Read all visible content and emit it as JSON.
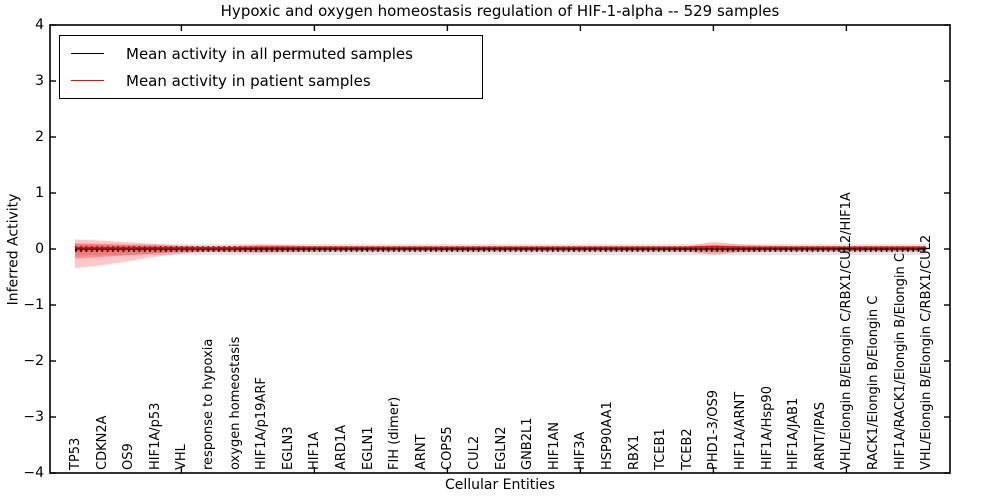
{
  "figure": {
    "background": "#ffffff",
    "axis_color": "#000000"
  },
  "chart_data": {
    "type": "line",
    "title": "Hypoxic and oxygen homeostasis regulation of HIF-1-alpha -- 529 samples",
    "xlabel": "Cellular Entities",
    "ylabel": "Inferred Activity",
    "ylim": [
      -4,
      4
    ],
    "yticks": [
      4,
      3,
      2,
      1,
      0,
      -1,
      -2,
      -3,
      -4
    ],
    "xticks": [
      5,
      10,
      15,
      20,
      25,
      30
    ],
    "grid": false,
    "legend_position": "upper left",
    "categories": [
      "TP53",
      "CDKN2A",
      "OS9",
      "HIF1A/p53",
      "VHL",
      "response to hypoxia",
      "oxygen homeostasis",
      "HIF1A/p19ARF",
      "EGLN3",
      "HIF1A",
      "ARD1A",
      "EGLN1",
      "FIH (dimer)",
      "ARNT",
      "COPS5",
      "CUL2",
      "EGLN2",
      "GNB2L1",
      "HIF1AN",
      "HIF3A",
      "HSP90AA1",
      "RBX1",
      "TCEB1",
      "TCEB2",
      "PHD1-3/OS9",
      "HIF1A/ARNT",
      "HIF1A/Hsp90",
      "HIF1A/JAB1",
      "ARNT/IPAS",
      "VHL/Elongin B/Elongin C/RBX1/CUL2/HIF1A",
      "RACK1/Elongin B/Elongin C",
      "HIF1A/RACK1/Elongin B/Elongin C",
      "VHL/Elongin B/Elongin C/RBX1/CUL2"
    ],
    "series": [
      {
        "name": "Mean activity in all permuted samples",
        "color": "#000000",
        "style": "solid_with_tick_markers",
        "values": [
          0,
          0,
          0,
          0,
          0,
          0,
          0,
          0,
          0,
          0,
          0,
          0,
          0,
          0,
          0,
          0,
          0,
          0,
          0,
          0,
          0,
          0,
          0,
          0,
          0,
          0,
          0,
          0,
          0,
          0,
          0,
          0,
          0
        ]
      },
      {
        "name": "Mean activity in patient samples",
        "color": "#ff0000",
        "style": "solid",
        "values": [
          0.02,
          0.02,
          0.02,
          0.02,
          0.02,
          0.02,
          0.02,
          0.03,
          0.03,
          0.03,
          0.03,
          0.03,
          0.03,
          0.03,
          0.03,
          0.03,
          0.03,
          0.03,
          0.03,
          0.03,
          0.03,
          0.03,
          0.03,
          0.03,
          0.04,
          0.03,
          0.03,
          0.03,
          0.03,
          0.03,
          0.03,
          0.03,
          0.03
        ]
      }
    ],
    "bands": {
      "permuted_gray": {
        "color": "#bbbbbb",
        "outer_hi": 0.09,
        "outer_lo": -0.11,
        "inner_hi": 0.045,
        "inner_lo": -0.055
      },
      "patient_red": {
        "color": "#ff0000",
        "outer_hi": [
          0.17,
          0.15,
          0.12,
          0.09,
          0.06,
          0.05,
          0.06,
          0.08,
          0.07,
          0.05,
          0.05,
          0.04,
          0.04,
          0.04,
          0.04,
          0.04,
          0.04,
          0.04,
          0.04,
          0.04,
          0.04,
          0.04,
          0.04,
          0.05,
          0.13,
          0.08,
          0.06,
          0.05,
          0.05,
          0.05,
          0.05,
          0.05,
          0.05
        ],
        "outer_lo": [
          -0.34,
          -0.29,
          -0.22,
          -0.14,
          -0.08,
          -0.05,
          -0.06,
          -0.07,
          -0.06,
          -0.05,
          -0.04,
          -0.04,
          -0.04,
          -0.04,
          -0.04,
          -0.04,
          -0.04,
          -0.04,
          -0.04,
          -0.04,
          -0.04,
          -0.04,
          -0.04,
          -0.05,
          -0.1,
          -0.06,
          -0.05,
          -0.04,
          -0.04,
          -0.04,
          -0.04,
          -0.04,
          -0.04
        ],
        "inner_hi": [
          0.1,
          0.09,
          0.07,
          0.06,
          0.05,
          0.04,
          0.04,
          0.05,
          0.05,
          0.04,
          0.03,
          0.03,
          0.03,
          0.03,
          0.03,
          0.03,
          0.03,
          0.03,
          0.03,
          0.03,
          0.03,
          0.03,
          0.03,
          0.03,
          0.07,
          0.05,
          0.04,
          0.03,
          0.03,
          0.03,
          0.03,
          0.03,
          0.03
        ],
        "inner_lo": [
          -0.17,
          -0.14,
          -0.11,
          -0.08,
          -0.05,
          -0.04,
          -0.04,
          -0.05,
          -0.04,
          -0.03,
          -0.03,
          -0.03,
          -0.03,
          -0.03,
          -0.03,
          -0.03,
          -0.03,
          -0.03,
          -0.03,
          -0.03,
          -0.03,
          -0.03,
          -0.03,
          -0.03,
          -0.05,
          -0.04,
          -0.03,
          -0.03,
          -0.03,
          -0.03,
          -0.03,
          -0.03,
          -0.03
        ]
      }
    }
  },
  "legend": {
    "entries": [
      {
        "label": "Mean activity in all permuted samples",
        "color": "#000000"
      },
      {
        "label": "Mean activity in patient samples",
        "color": "#ff0000"
      }
    ]
  }
}
